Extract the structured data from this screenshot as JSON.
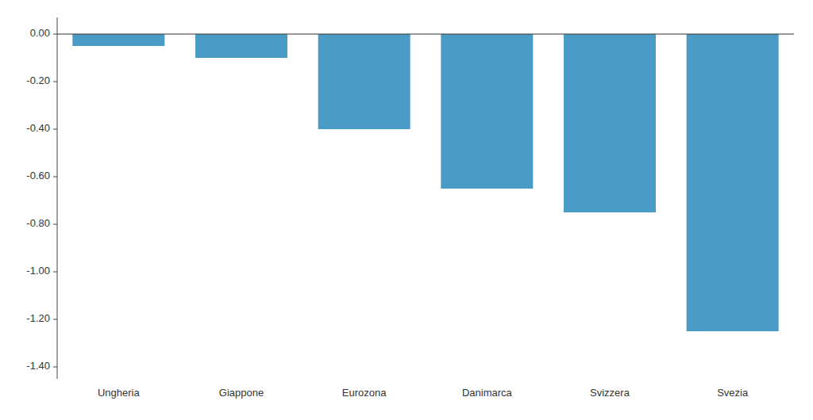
{
  "chart_data": {
    "type": "bar",
    "categories": [
      "Ungheria",
      "Giappone",
      "Eurozona",
      "Danimarca",
      "Svizzera",
      "Svezia"
    ],
    "values": [
      -0.05,
      -0.1,
      -0.4,
      -0.65,
      -0.75,
      -1.25
    ],
    "color": "#4a9cc7",
    "ylim": [
      -1.45,
      0.07
    ],
    "yticks": [
      {
        "value": 0.0,
        "label": "0.00"
      },
      {
        "value": -0.2,
        "label": "-0.20"
      },
      {
        "value": -0.4,
        "label": "-0.40"
      },
      {
        "value": -0.6,
        "label": "-0.60"
      },
      {
        "value": -0.8,
        "label": "-0.80"
      },
      {
        "value": -1.0,
        "label": "-1.00"
      },
      {
        "value": -1.2,
        "label": "-1.20"
      },
      {
        "value": -1.4,
        "label": "-1.40"
      }
    ],
    "grid": false
  }
}
